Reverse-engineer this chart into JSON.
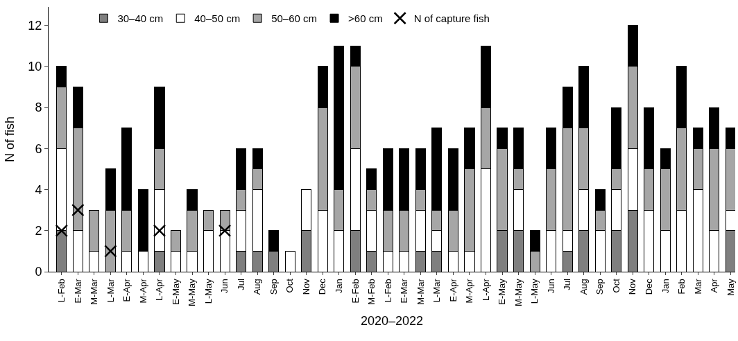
{
  "chart_data": {
    "type": "bar",
    "stacked": true,
    "xlabel": "2020–2022",
    "ylabel": "N of fish",
    "categories": [
      "L-Feb",
      "E-Mar",
      "M-Mar",
      "L-Mar",
      "E-Apr",
      "M-Apr",
      "L-Apr",
      "E-May",
      "M-May",
      "L-May",
      "Jun",
      "Jul",
      "Aug",
      "Sep",
      "Oct",
      "Nov",
      "Dec",
      "Jan",
      "E-Feb",
      "M-Feb",
      "L-Feb",
      "E-Mar",
      "M-Mar",
      "L-Mar",
      "E-Apr",
      "M-Apr",
      "L-Apr",
      "E-May",
      "M-May",
      "L-May",
      "Jun",
      "Jul",
      "Aug",
      "Sep",
      "Oct",
      "Nov",
      "Dec",
      "Jan",
      "Feb",
      "Mar",
      "Apr",
      "May"
    ],
    "series": [
      {
        "name": "30–40 cm",
        "color": "#7f7f7f",
        "values": [
          2,
          0,
          0,
          0,
          0,
          0,
          1,
          0,
          0,
          0,
          0,
          1,
          1,
          1,
          0,
          2,
          0,
          0,
          2,
          1,
          0,
          0,
          1,
          1,
          0,
          0,
          0,
          2,
          2,
          0,
          0,
          1,
          2,
          0,
          2,
          3,
          0,
          0,
          0,
          0,
          0,
          2
        ]
      },
      {
        "name": "40–50 cm",
        "color": "#ffffff",
        "values": [
          4,
          2,
          1,
          0,
          1,
          1,
          3,
          1,
          1,
          2,
          2,
          2,
          3,
          0,
          1,
          2,
          3,
          2,
          4,
          2,
          1,
          1,
          2,
          1,
          1,
          1,
          5,
          0,
          2,
          0,
          2,
          1,
          2,
          2,
          2,
          3,
          3,
          2,
          3,
          4,
          2,
          1
        ]
      },
      {
        "name": "50–60 cm",
        "color": "#a6a6a6",
        "values": [
          3,
          5,
          2,
          3,
          2,
          0,
          2,
          1,
          2,
          1,
          1,
          1,
          1,
          0,
          0,
          0,
          5,
          2,
          4,
          1,
          2,
          2,
          1,
          1,
          2,
          4,
          3,
          4,
          1,
          1,
          3,
          5,
          3,
          1,
          1,
          4,
          2,
          3,
          4,
          2,
          4,
          3
        ]
      },
      {
        "name": ">60 cm",
        "color": "#000000",
        "values": [
          1,
          2,
          0,
          2,
          4,
          3,
          3,
          0,
          1,
          0,
          0,
          2,
          1,
          1,
          0,
          0,
          2,
          7,
          1,
          1,
          3,
          3,
          2,
          4,
          3,
          2,
          3,
          1,
          2,
          1,
          2,
          2,
          3,
          1,
          3,
          2,
          3,
          1,
          3,
          1,
          2,
          1
        ]
      },
      {
        "name": "N of capture fish",
        "type": "scatter",
        "marker": "cross",
        "color": "#000000",
        "values": [
          2,
          3,
          null,
          1,
          null,
          null,
          2,
          null,
          null,
          null,
          2,
          null,
          null,
          null,
          null,
          null,
          null,
          null,
          null,
          null,
          null,
          null,
          null,
          null,
          null,
          null,
          null,
          null,
          null,
          null,
          null,
          null,
          null,
          null,
          null,
          null,
          null,
          null,
          null,
          null,
          null,
          null
        ]
      }
    ],
    "ylim": [
      0,
      12.9
    ],
    "yticks": [
      0,
      2,
      4,
      6,
      8,
      10,
      12
    ],
    "legend": "top"
  }
}
